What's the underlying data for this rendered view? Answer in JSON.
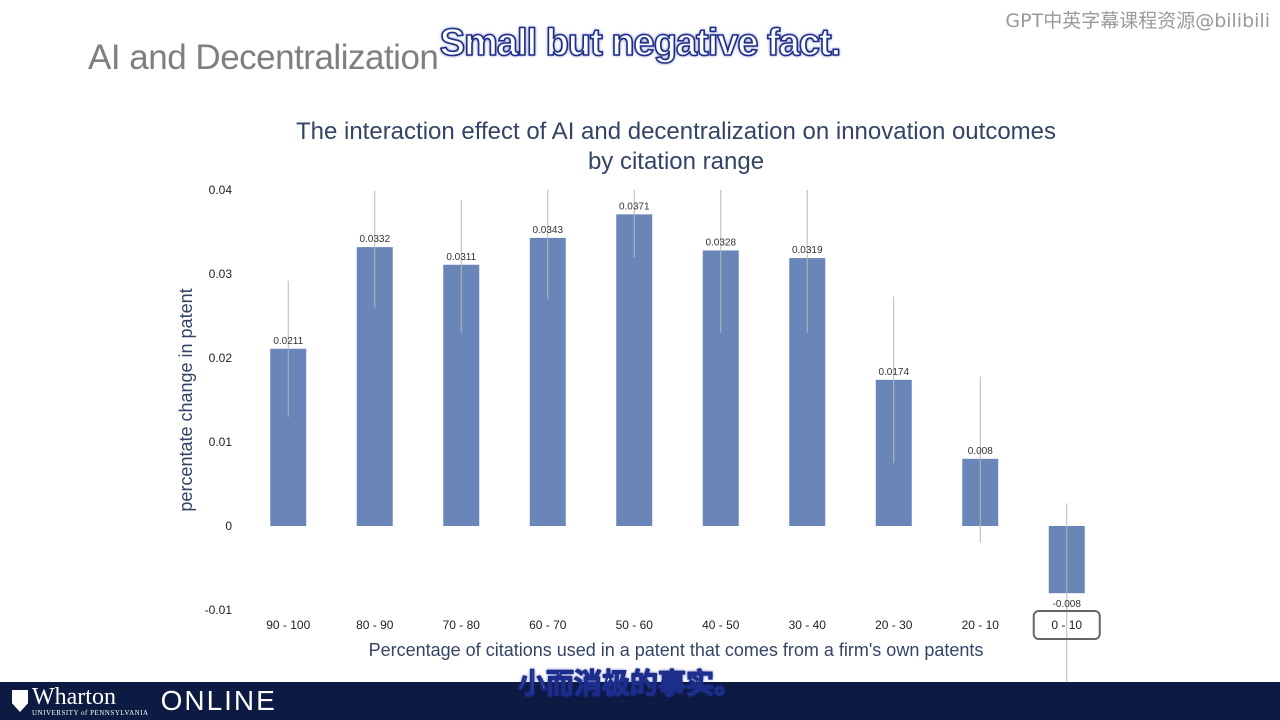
{
  "slide": {
    "title": "AI and Decentralization",
    "watermark": "GPT中英字幕课程资源@bilibili",
    "subtitle_en": "Small but negative fact.",
    "subtitle_zh": "小而消极的事实。"
  },
  "footer": {
    "logo_wharton": "Wharton",
    "logo_upenn": "UNIVERSITY of PENNSYLVANIA",
    "logo_online": "ONLINE"
  },
  "colors": {
    "bar": "#6a86b8",
    "error_bar": "#b8b8b8",
    "title": "#334466",
    "footer": "#0d1a42"
  },
  "chart_data": {
    "type": "bar",
    "title_line1": "The interaction effect of AI and decentralization on innovation outcomes",
    "title_line2": "by citation range",
    "xlabel": "Percentage of citations used in a patent that comes from a firm's own patents",
    "ylabel": "percentate change in patent",
    "ylim": [
      -0.01,
      0.04
    ],
    "yticks": [
      "-0.01",
      "0",
      "0.01",
      "0.02",
      "0.03",
      "0.04"
    ],
    "ytick_values": [
      -0.01,
      0,
      0.01,
      0.02,
      0.03,
      0.04
    ],
    "categories": [
      "90 - 100",
      "80 - 90",
      "70 - 80",
      "60 - 70",
      "50 - 60",
      "40 - 50",
      "30 - 40",
      "20 - 30",
      "20 - 10",
      "0 - 10"
    ],
    "values": [
      0.0211,
      0.0332,
      0.0311,
      0.0343,
      0.0371,
      0.0328,
      0.0319,
      0.0174,
      0.008,
      -0.008
    ],
    "value_labels": [
      "0.0211",
      "0.0332",
      "0.0311",
      "0.0343",
      "0.0371",
      "0.0328",
      "0.0319",
      "0.0174",
      "0.008",
      "-0.008"
    ],
    "error_low": [
      0.013,
      0.026,
      0.023,
      0.027,
      0.032,
      0.023,
      0.023,
      0.0075,
      -0.002,
      -0.0185
    ],
    "error_high": [
      0.0292,
      0.0399,
      0.0388,
      0.04,
      0.04,
      0.04,
      0.04,
      0.0273,
      0.0178,
      0.0027
    ],
    "highlighted_category": "0 - 10",
    "grid": false,
    "legend": "none"
  }
}
